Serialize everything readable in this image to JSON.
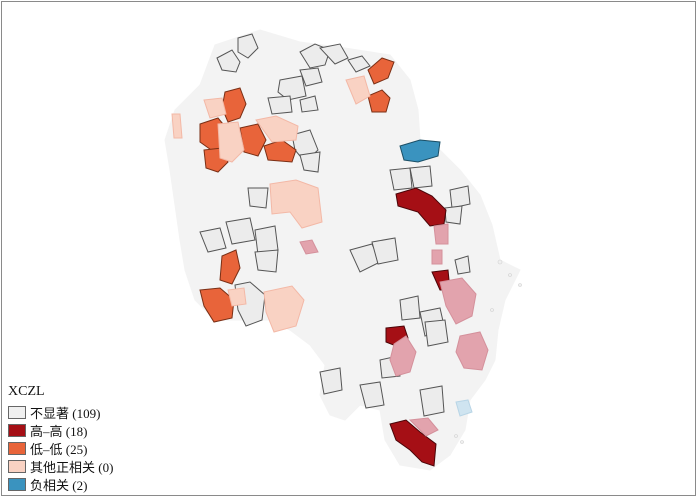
{
  "legend": {
    "title": "XCZL",
    "items": [
      {
        "label": "不显著  (109)",
        "color": "#f0f0f0"
      },
      {
        "label": "高–高 (18)",
        "color": "#a50f15"
      },
      {
        "label": "低–低 (25)",
        "color": "#e8643a"
      },
      {
        "label": "其他正相关 (0)",
        "color": "#f9d2c3"
      },
      {
        "label": "负相关 (2)",
        "color": "#3a93bf"
      }
    ]
  },
  "colors": {
    "background_region": "#f3f3f3",
    "ns_outlined": "#ececec",
    "hh": "#a50f15",
    "ll": "#e8643a",
    "other_pos": "#f9d2c3",
    "neg": "#3a93bf",
    "hh_light": "#e2a3ad",
    "neg_light": "#cfe4f0"
  }
}
